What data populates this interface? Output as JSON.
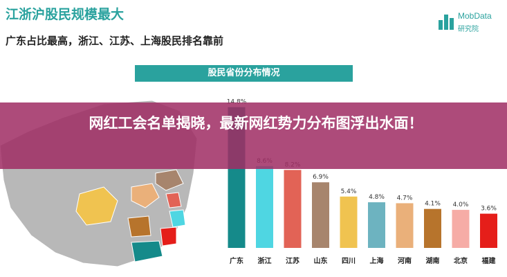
{
  "title": "江浙沪股民规模最大",
  "subtitle": "广东占比最高，浙江、江苏、上海股民排名靠前",
  "logo": {
    "name": "MobData",
    "name2": "研究院"
  },
  "banner": {
    "text": "网红工会名单揭晓，最新网红势力分布图浮出水面！"
  },
  "chart_data": {
    "type": "bar",
    "title": "股民省份分布情况",
    "categories": [
      "广东",
      "浙江",
      "江苏",
      "山东",
      "四川",
      "上海",
      "河南",
      "湖南",
      "北京",
      "福建"
    ],
    "values": [
      14.8,
      8.6,
      8.2,
      6.9,
      5.4,
      4.8,
      4.7,
      4.1,
      4.0,
      3.6
    ],
    "labels": [
      "14.8%",
      "8.6%",
      "8.2%",
      "6.9%",
      "5.4%",
      "4.8%",
      "4.7%",
      "4.1%",
      "4.0%",
      "3.6%"
    ],
    "colors": [
      "#158a8a",
      "#4fd6e2",
      "#e26356",
      "#a7856d",
      "#f0c350",
      "#6db3c0",
      "#eab07a",
      "#b7742c",
      "#f6aca6",
      "#e51e1a"
    ],
    "ylim": [
      0,
      15
    ]
  }
}
